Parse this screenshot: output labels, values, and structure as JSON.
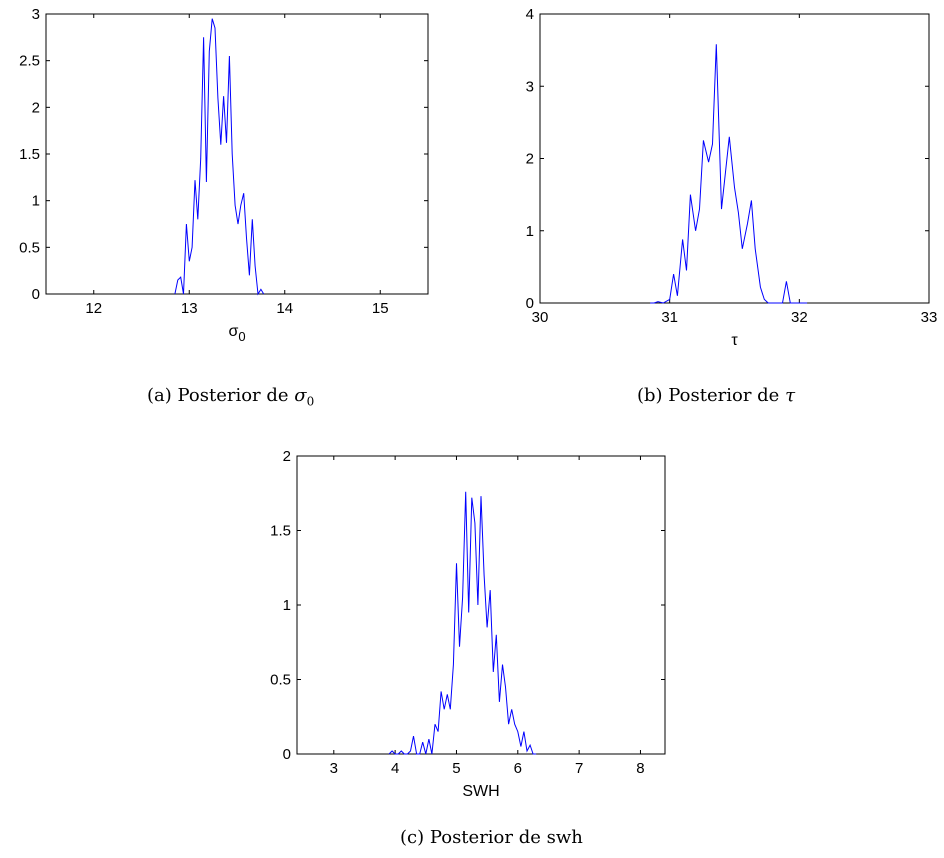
{
  "captions": [
    {
      "prefix": "(a) Posterior de ",
      "symbol": "σ",
      "sub": "0"
    },
    {
      "prefix": "(b) Posterior de ",
      "symbol": "τ",
      "sub": ""
    },
    {
      "prefix": "(c) Posterior de ",
      "symbol": "swh",
      "sub": ""
    }
  ],
  "line_color": "#0000ff",
  "chart_data": [
    {
      "type": "line",
      "title": "",
      "xlabel": "σ",
      "xlabel_sub": "0",
      "ylabel": "",
      "xlim": [
        11.5,
        15.5
      ],
      "ylim": [
        0,
        3
      ],
      "xticks": [
        12,
        13,
        14,
        15
      ],
      "yticks": [
        0,
        0.5,
        1,
        1.5,
        2,
        2.5,
        3
      ],
      "ytick_labels": [
        "0",
        "0.5",
        "1",
        "1.5",
        "2",
        "2.5",
        "3"
      ],
      "series": [
        {
          "x": [
            12.85,
            12.88,
            12.91,
            12.94,
            12.97,
            13.0,
            13.03,
            13.06,
            13.09,
            13.12,
            13.15,
            13.18,
            13.21,
            13.24,
            13.27,
            13.3,
            13.33,
            13.36,
            13.39,
            13.42,
            13.45,
            13.48,
            13.51,
            13.54,
            13.57,
            13.6,
            13.63,
            13.66,
            13.69,
            13.72,
            13.75,
            13.78
          ],
          "y": [
            0.0,
            0.15,
            0.18,
            0.0,
            0.75,
            0.35,
            0.5,
            1.22,
            0.8,
            1.45,
            2.75,
            1.2,
            2.6,
            2.95,
            2.85,
            2.1,
            1.6,
            2.12,
            1.62,
            2.55,
            1.5,
            0.95,
            0.75,
            0.95,
            1.08,
            0.6,
            0.2,
            0.8,
            0.3,
            0.0,
            0.05,
            0.0
          ]
        }
      ]
    },
    {
      "type": "line",
      "title": "",
      "xlabel": "τ",
      "ylabel": "",
      "xlim": [
        30,
        33
      ],
      "ylim": [
        0,
        4
      ],
      "xticks": [
        30,
        31,
        32,
        33
      ],
      "yticks": [
        0,
        1,
        2,
        3,
        4
      ],
      "ytick_labels": [
        "0",
        "1",
        "2",
        "3",
        "4"
      ],
      "series": [
        {
          "x": [
            30.85,
            30.88,
            30.91,
            30.95,
            31.0,
            31.03,
            31.06,
            31.1,
            31.13,
            31.16,
            31.2,
            31.23,
            31.26,
            31.3,
            31.33,
            31.36,
            31.4,
            31.43,
            31.46,
            31.5,
            31.53,
            31.56,
            31.6,
            31.63,
            31.66,
            31.7,
            31.73,
            31.76,
            31.8,
            31.83,
            31.87,
            31.9,
            31.93,
            31.96,
            32.0,
            32.03,
            32.06
          ],
          "y": [
            0.0,
            0.0,
            0.02,
            0.0,
            0.05,
            0.4,
            0.1,
            0.88,
            0.45,
            1.5,
            1.0,
            1.3,
            2.25,
            1.95,
            2.2,
            3.58,
            1.3,
            1.8,
            2.3,
            1.6,
            1.25,
            0.75,
            1.1,
            1.42,
            0.75,
            0.22,
            0.05,
            0.0,
            0.0,
            0.0,
            0.0,
            0.3,
            0.0,
            0.0,
            0.0,
            0.0,
            0.0
          ]
        }
      ]
    },
    {
      "type": "line",
      "title": "",
      "xlabel": "SWH",
      "ylabel": "",
      "xlim": [
        2.4,
        8.4
      ],
      "ylim": [
        0,
        2
      ],
      "xticks": [
        3,
        4,
        5,
        6,
        7,
        8
      ],
      "yticks": [
        0,
        0.5,
        1,
        1.5,
        2
      ],
      "ytick_labels": [
        "0",
        "0.5",
        "1",
        "1.5",
        "2"
      ],
      "series": [
        {
          "x": [
            3.9,
            3.95,
            4.0,
            4.05,
            4.1,
            4.15,
            4.2,
            4.25,
            4.3,
            4.35,
            4.4,
            4.45,
            4.5,
            4.55,
            4.6,
            4.65,
            4.7,
            4.75,
            4.8,
            4.85,
            4.9,
            4.95,
            5.0,
            5.05,
            5.1,
            5.15,
            5.2,
            5.25,
            5.3,
            5.35,
            5.4,
            5.45,
            5.5,
            5.55,
            5.6,
            5.65,
            5.7,
            5.75,
            5.8,
            5.85,
            5.9,
            5.95,
            6.0,
            6.05,
            6.1,
            6.15,
            6.2,
            6.25,
            6.3
          ],
          "y": [
            0.0,
            0.02,
            0.0,
            0.0,
            0.02,
            0.0,
            0.0,
            0.02,
            0.12,
            0.0,
            0.0,
            0.08,
            0.0,
            0.1,
            0.0,
            0.2,
            0.15,
            0.42,
            0.3,
            0.4,
            0.3,
            0.6,
            1.28,
            0.72,
            1.05,
            1.76,
            0.95,
            1.72,
            1.55,
            1.0,
            1.73,
            1.2,
            0.85,
            1.1,
            0.55,
            0.8,
            0.35,
            0.6,
            0.45,
            0.2,
            0.3,
            0.2,
            0.15,
            0.05,
            0.15,
            0.02,
            0.06,
            0.0,
            0.0
          ]
        }
      ]
    }
  ]
}
